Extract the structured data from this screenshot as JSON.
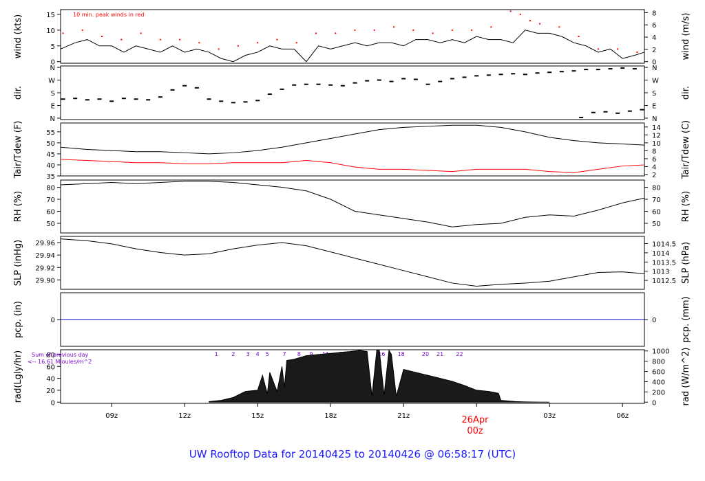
{
  "chart_data": {
    "type": "line",
    "title": "UW Rooftop Data for 20140425  to  20140426 @ 06:58:17  (UTC)",
    "time_axis": {
      "ticks": [
        "09z",
        "12z",
        "15z",
        "18z",
        "21z",
        "00z",
        "03z",
        "06z"
      ],
      "tick_hours": [
        9,
        12,
        15,
        18,
        21,
        24,
        27,
        30
      ],
      "range_hours": [
        6.9,
        30.9
      ],
      "date_label": "26Apr",
      "date_tick": "00z"
    },
    "panels": [
      {
        "id": "wind",
        "ylabel": "wind (kts)",
        "ylabel_right": "wind (m/s)",
        "ylim": [
          -0.5,
          16.5
        ],
        "yticks": [
          0,
          5,
          10,
          15
        ],
        "yticks_right": [
          "0",
          "2",
          "4",
          "6",
          "8"
        ],
        "yticks_right_vals": [
          0,
          3.888,
          7.776,
          11.664,
          15.552
        ],
        "annotation": "10 min. peak winds in red",
        "series": [
          {
            "name": "wind",
            "color": "#000000",
            "x": [
              6.9,
              7.5,
              8,
              8.5,
              9,
              9.5,
              10,
              10.5,
              11,
              11.5,
              12,
              12.5,
              13,
              13.5,
              14,
              14.5,
              15,
              15.5,
              16,
              16.5,
              17,
              17.5,
              18,
              18.5,
              19,
              19.5,
              20,
              20.5,
              21,
              21.5,
              22,
              22.5,
              23,
              23.5,
              24,
              24.5,
              25,
              25.5,
              26,
              26.5,
              27,
              27.5,
              28,
              28.5,
              29,
              29.5,
              30,
              30.5,
              30.9
            ],
            "y": [
              4,
              6,
              7,
              5,
              5,
              3,
              5,
              4,
              3,
              5,
              3,
              4,
              3,
              1,
              0,
              2,
              3,
              5,
              4,
              4,
              0,
              5,
              4,
              5,
              6,
              5,
              6,
              6,
              5,
              7,
              7,
              6,
              7,
              6,
              8,
              7,
              7,
              6,
              10,
              9,
              9,
              8,
              6,
              5,
              3,
              4,
              1,
              2,
              3
            ]
          },
          {
            "name": "peak",
            "color": "#ff0000",
            "marker": "dot",
            "x": [
              7,
              7.8,
              8.6,
              9.4,
              10.2,
              11,
              11.8,
              12.6,
              13.4,
              14.2,
              15,
              15.8,
              16.6,
              17.4,
              18.2,
              19,
              19.8,
              20.6,
              21.4,
              22.2,
              23,
              23.8,
              24.6,
              25.4,
              25.8,
              26.2,
              26.6,
              27.4,
              28.2,
              29,
              29.8,
              30.6
            ],
            "y": [
              9,
              10,
              8,
              7,
              9,
              7,
              7,
              6,
              4,
              5,
              6,
              7,
              6,
              9,
              9,
              10,
              10,
              11,
              10,
              9,
              10,
              10,
              11,
              16,
              15,
              13,
              12,
              11,
              8,
              4,
              4,
              3
            ]
          }
        ]
      },
      {
        "id": "dir",
        "ylabel": "dir.",
        "ylabel_right": "dir.",
        "ylim": [
          -10,
          370
        ],
        "ytick_vals": [
          0,
          90,
          180,
          270,
          360
        ],
        "yticks": [
          "N",
          "E",
          "S",
          "W",
          "N"
        ],
        "series": [
          {
            "name": "direction",
            "color": "#000000",
            "marker": "dash",
            "x": [
              7,
              7.5,
              8,
              8.5,
              9,
              9.5,
              10,
              10.5,
              11,
              11.5,
              12,
              12.5,
              13,
              13.5,
              14,
              14.5,
              15,
              15.5,
              16,
              16.5,
              17,
              17.5,
              18,
              18.5,
              19,
              19.5,
              20,
              20.5,
              21,
              21.5,
              22,
              22.5,
              23,
              23.5,
              24,
              24.5,
              25,
              25.5,
              26,
              26.5,
              27,
              27.5,
              28,
              28.5,
              29,
              29.5,
              30,
              30.5
            ],
            "y": [
              135,
              140,
              130,
              135,
              120,
              140,
              135,
              130,
              150,
              200,
              230,
              215,
              135,
              120,
              110,
              115,
              125,
              170,
              205,
              235,
              240,
              240,
              235,
              230,
              250,
              265,
              270,
              260,
              280,
              275,
              240,
              260,
              280,
              290,
              300,
              305,
              310,
              315,
              310,
              320,
              325,
              330,
              335,
              345,
              345,
              350,
              355,
              350
            ]
          },
          {
            "name": "direction-wrapped",
            "color": "#000000",
            "marker": "dash",
            "x": [
              28.3,
              28.8,
              29.3,
              29.8,
              30.3,
              30.8
            ],
            "y": [
              5,
              40,
              45,
              35,
              50,
              60
            ]
          }
        ]
      },
      {
        "id": "temp",
        "ylabel": "Tair/Tdew (F)",
        "ylabel_right": "Tair/Tdew (C)",
        "ylim": [
          35,
          59
        ],
        "yticks": [
          35,
          40,
          45,
          50,
          55
        ],
        "yticks_right": [
          "2",
          "4",
          "6",
          "8",
          "10",
          "12",
          "14"
        ],
        "yticks_right_vals": [
          35.6,
          39.2,
          42.8,
          46.4,
          50,
          53.6,
          57.2
        ],
        "series": [
          {
            "name": "Tair",
            "color": "#000000",
            "x": [
              6.9,
              8,
              9,
              10,
              11,
              12,
              13,
              14,
              15,
              16,
              17,
              18,
              19,
              20,
              21,
              22,
              23,
              24,
              25,
              26,
              27,
              28,
              29,
              30,
              30.9
            ],
            "y": [
              48,
              47,
              46.5,
              46,
              46,
              45.5,
              45,
              45.5,
              46.5,
              48,
              50,
              52,
              54,
              56,
              57,
              57.5,
              58,
              58,
              57,
              55,
              52.5,
              51,
              50,
              49.5,
              49
            ]
          },
          {
            "name": "Tdew",
            "color": "#ff0000",
            "x": [
              6.9,
              8,
              9,
              10,
              11,
              12,
              13,
              14,
              15,
              16,
              17,
              18,
              19,
              20,
              21,
              22,
              23,
              24,
              25,
              26,
              27,
              28,
              29,
              30,
              30.9
            ],
            "y": [
              42.5,
              42,
              41.5,
              41,
              41,
              40.5,
              40.5,
              41,
              41,
              41,
              42,
              41,
              39,
              38,
              38,
              37.5,
              37,
              38,
              38,
              38,
              37,
              36.5,
              38,
              39.5,
              40
            ]
          }
        ]
      },
      {
        "id": "rh",
        "ylabel": "RH (%)",
        "ylabel_right": "RH (%)",
        "ylim": [
          42,
          86
        ],
        "yticks": [
          50,
          60,
          70,
          80
        ],
        "yticks_right": [
          "50",
          "60",
          "70",
          "80"
        ],
        "yticks_right_vals": [
          50,
          60,
          70,
          80
        ],
        "series": [
          {
            "name": "RH",
            "color": "#000000",
            "x": [
              6.9,
              8,
              9,
              10,
              11,
              12,
              13,
              14,
              15,
              16,
              17,
              18,
              19,
              20,
              21,
              22,
              23,
              24,
              25,
              26,
              27,
              28,
              29,
              30,
              30.9
            ],
            "y": [
              82,
              83,
              84,
              83,
              84,
              85,
              85,
              84,
              82,
              80,
              77,
              70,
              60,
              57,
              54,
              51,
              47,
              49,
              50,
              55,
              57,
              56,
              61,
              67,
              71
            ]
          }
        ]
      },
      {
        "id": "slp",
        "ylabel": "SLP (inHg)",
        "ylabel_right": "SLP (hPa)",
        "ylim": [
          29.885,
          29.97
        ],
        "yticks": [
          "29.90",
          "29.92",
          "29.94",
          "29.96"
        ],
        "ytick_vals": [
          29.9,
          29.92,
          29.94,
          29.96
        ],
        "yticks_right": [
          "1012.5",
          "1013",
          "1013.5",
          "1014",
          "1014.5"
        ],
        "yticks_right_vals": [
          29.8993,
          29.9141,
          29.9288,
          29.9436,
          29.9584
        ],
        "series": [
          {
            "name": "SLP",
            "color": "#000000",
            "x": [
              6.9,
              8,
              9,
              10,
              11,
              12,
              13,
              14,
              15,
              16,
              17,
              18,
              19,
              20,
              21,
              22,
              23,
              24,
              25,
              26,
              27,
              28,
              29,
              30,
              30.9
            ],
            "y": [
              29.966,
              29.963,
              29.958,
              29.95,
              29.944,
              29.94,
              29.942,
              29.95,
              29.956,
              29.96,
              29.955,
              29.945,
              29.935,
              29.925,
              29.915,
              29.905,
              29.895,
              29.89,
              29.893,
              29.895,
              29.898,
              29.905,
              29.912,
              29.913,
              29.91
            ]
          }
        ]
      },
      {
        "id": "pcp",
        "ylabel": "pcp. (in)",
        "ylabel_right": "pcp. (mm)",
        "ylim": [
          -1,
          1
        ],
        "yticks": [
          "0"
        ],
        "ytick_vals": [
          0
        ],
        "yticks_right": [
          "0"
        ],
        "yticks_right_vals": [
          0
        ],
        "series": [
          {
            "name": "precip",
            "color": "#0000cc",
            "x": [
              6.9,
              30.9
            ],
            "y": [
              0,
              0
            ]
          }
        ]
      },
      {
        "id": "rad",
        "type": "area",
        "ylabel": "rad(Lgly/hr)",
        "ylabel_right": "rad (W/m^2)",
        "ylim": [
          -2,
          88
        ],
        "yticks": [
          0,
          20,
          40,
          60,
          80
        ],
        "yticks_right": [
          "0",
          "200",
          "400",
          "600",
          "800",
          "1000"
        ],
        "yticks_right_vals": [
          0,
          17.2,
          34.4,
          51.6,
          68.8,
          86
        ],
        "annotation": "Sum of previous day",
        "annotation2": "<-- 16.61 MJoules/m^2",
        "hour_labels": [
          "1",
          "2",
          "3",
          "4",
          "5",
          "7",
          "8",
          "9",
          "11",
          "12",
          "14",
          "16",
          "18",
          "20",
          "21",
          "22"
        ],
        "hour_label_x": [
          13.3,
          14.0,
          14.6,
          15.0,
          15.4,
          16.1,
          16.7,
          17.2,
          17.8,
          18.5,
          19.2,
          20.1,
          20.9,
          21.9,
          22.5,
          23.3
        ],
        "series": [
          {
            "name": "radiation",
            "color": "#000000",
            "fill": "#1a1a1a",
            "x": [
              13.0,
              13.5,
              14.0,
              14.5,
              15.0,
              15.2,
              15.4,
              15.5,
              15.8,
              16.0,
              16.1,
              16.2,
              16.5,
              17.0,
              17.5,
              18.0,
              18.5,
              18.8,
              19.0,
              19.2,
              19.35,
              19.5,
              19.7,
              19.9,
              20.0,
              20.2,
              20.4,
              20.5,
              20.7,
              21.0,
              21.5,
              22.0,
              22.5,
              23.0,
              23.5,
              24.0,
              24.5,
              24.9,
              25.0,
              25.3,
              25.6,
              26.0,
              26.5,
              27.0
            ],
            "y": [
              1,
              3,
              8,
              18,
              20,
              45,
              14,
              50,
              18,
              60,
              25,
              70,
              72,
              78,
              80,
              82,
              84,
              85,
              86,
              87,
              86,
              85,
              10,
              88,
              88,
              12,
              87,
              80,
              10,
              55,
              50,
              45,
              40,
              35,
              28,
              20,
              18,
              15,
              3,
              2,
              1,
              0.5,
              0.2,
              0
            ]
          }
        ]
      }
    ]
  }
}
